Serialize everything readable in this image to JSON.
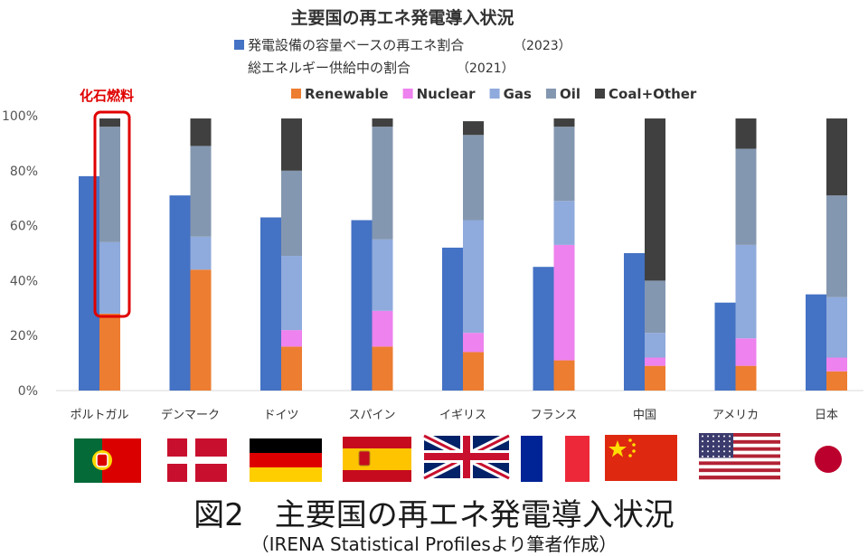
{
  "chart_data": {
    "type": "bar",
    "title": "主要国の再エネ発電導入状況",
    "categories": [
      "ポルトガル",
      "デンマーク",
      "ドイツ",
      "スパイン",
      "イギリス",
      "フランス",
      "中国",
      "アメリカ",
      "日本"
    ],
    "y_ticks": [
      "0%",
      "20%",
      "40%",
      "60%",
      "80%",
      "100%"
    ],
    "ylim": [
      0,
      100
    ],
    "power_series": {
      "name": "発電設備の容量ベースの再エネ割合",
      "year": "（2023）",
      "color": "#4472c4",
      "values": [
        78,
        71,
        63,
        62,
        52,
        45,
        50,
        32,
        35
      ]
    },
    "energy_group_label": "総エネルギー供給中の割合",
    "energy_group_year": "（2021）",
    "energy_series": [
      {
        "name": "Renewable",
        "color": "#ed7d31",
        "values": [
          28,
          44,
          16,
          16,
          14,
          11,
          9,
          9,
          7
        ]
      },
      {
        "name": "Nuclear",
        "color": "#ee82ee",
        "values": [
          0,
          0,
          6,
          13,
          7,
          42,
          3,
          10,
          5
        ]
      },
      {
        "name": "Gas",
        "color": "#8faadc",
        "values": [
          26,
          12,
          27,
          26,
          41,
          16,
          9,
          34,
          22
        ]
      },
      {
        "name": "Oil",
        "color": "#8497b0",
        "values": [
          42,
          33,
          31,
          41,
          31,
          27,
          19,
          35,
          37
        ]
      },
      {
        "name": "Coal+Other",
        "color": "#404040",
        "values": [
          3,
          10,
          19,
          3,
          5,
          3,
          59,
          11,
          28
        ]
      }
    ],
    "annotation": {
      "text": "化石燃料",
      "color": "#e00000",
      "target_category": "ポルトガル"
    },
    "grid": false,
    "legend_position": "top"
  },
  "flags": [
    "portugal",
    "denmark",
    "germany",
    "spain",
    "uk",
    "france",
    "china",
    "usa",
    "japan"
  ],
  "caption": "図2　主要国の再エネ発電導入状況",
  "source": "（IRENA Statistical Profilesより筆者作成）"
}
